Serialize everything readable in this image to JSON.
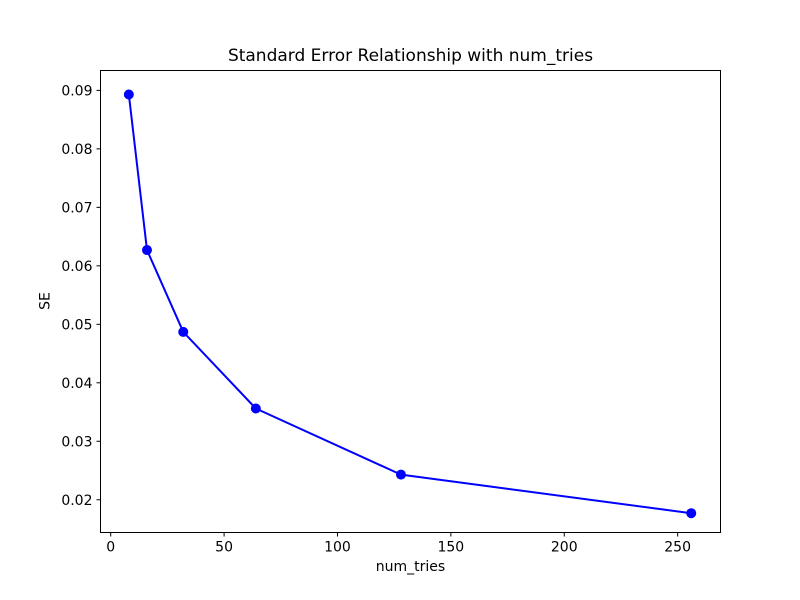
{
  "figure": {
    "background_color": "#ffffff",
    "text_color": "#000000"
  },
  "chart_data": {
    "type": "line",
    "title": "Standard Error Relationship with num_tries",
    "xlabel": "num_tries",
    "ylabel": "SE",
    "x": [
      8,
      16,
      32,
      64,
      128,
      256
    ],
    "y": [
      0.0893,
      0.0627,
      0.0487,
      0.0356,
      0.0243,
      0.0177
    ],
    "line_color": "#0000ff",
    "line_width": 2,
    "marker": "circle",
    "marker_color": "#0000ff",
    "marker_radius": 5,
    "xlim": [
      -4.5,
      268.9
    ],
    "ylim": [
      0.0144,
      0.0934
    ],
    "xticks": {
      "values": [
        0,
        50,
        100,
        150,
        200,
        250
      ],
      "labels": [
        "0",
        "50",
        "100",
        "150",
        "200",
        "250"
      ]
    },
    "yticks": {
      "values": [
        0.02,
        0.03,
        0.04,
        0.05,
        0.06,
        0.07,
        0.08,
        0.09
      ],
      "labels": [
        "0.02",
        "0.03",
        "0.04",
        "0.05",
        "0.06",
        "0.07",
        "0.08",
        "0.09"
      ]
    },
    "grid": false,
    "legend": false
  }
}
